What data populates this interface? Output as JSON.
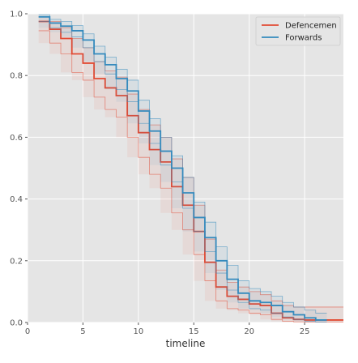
{
  "chart_data": {
    "type": "line",
    "title": "",
    "xlabel": "timeline",
    "ylabel": "",
    "xlim": [
      0,
      28.5
    ],
    "ylim": [
      0,
      1.0
    ],
    "xticks": [
      0,
      5,
      10,
      15,
      20,
      25
    ],
    "yticks": [
      0.0,
      0.2,
      0.4,
      0.6,
      0.8,
      1.0
    ],
    "grid": true,
    "legend": "top-right",
    "background": "#e5e5e5",
    "series": [
      {
        "name": "Defencemen",
        "color": "#e24a33",
        "steps": {
          "x": [
            1,
            2,
            3,
            4,
            5,
            6,
            7,
            8,
            9,
            10,
            11,
            12,
            13,
            14,
            15,
            16,
            17,
            18,
            19,
            20,
            21,
            22,
            23,
            24,
            25,
            26,
            27,
            28.5
          ],
          "y": [
            0.975,
            0.95,
            0.92,
            0.87,
            0.84,
            0.79,
            0.76,
            0.735,
            0.67,
            0.615,
            0.56,
            0.52,
            0.44,
            0.38,
            0.295,
            0.195,
            0.115,
            0.085,
            0.075,
            0.06,
            0.055,
            0.03,
            0.015,
            0.01,
            0.008,
            0.008,
            0.008,
            0.008
          ],
          "ci_upper": [
            0.99,
            0.975,
            0.955,
            0.92,
            0.89,
            0.845,
            0.815,
            0.795,
            0.74,
            0.69,
            0.64,
            0.6,
            0.53,
            0.47,
            0.38,
            0.27,
            0.17,
            0.13,
            0.115,
            0.1,
            0.09,
            0.07,
            0.055,
            0.05,
            0.05,
            0.05,
            0.05,
            0.05
          ],
          "ci_lower": [
            0.945,
            0.905,
            0.87,
            0.81,
            0.785,
            0.73,
            0.69,
            0.665,
            0.6,
            0.535,
            0.48,
            0.435,
            0.355,
            0.3,
            0.22,
            0.135,
            0.07,
            0.045,
            0.04,
            0.03,
            0.025,
            0.01,
            0.004,
            0.002,
            0.001,
            0.001,
            0.001,
            0.001
          ]
        }
      },
      {
        "name": "Forwards",
        "color": "#348abd",
        "steps": {
          "x": [
            1,
            2,
            3,
            4,
            5,
            6,
            7,
            8,
            9,
            10,
            11,
            12,
            13,
            14,
            15,
            16,
            17,
            18,
            19,
            20,
            21,
            22,
            23,
            24,
            25,
            26,
            27
          ],
          "y": [
            0.99,
            0.97,
            0.96,
            0.945,
            0.915,
            0.87,
            0.835,
            0.79,
            0.75,
            0.685,
            0.62,
            0.555,
            0.5,
            0.42,
            0.34,
            0.275,
            0.2,
            0.14,
            0.095,
            0.07,
            0.065,
            0.055,
            0.035,
            0.025,
            0.015,
            0.008,
            0.008
          ],
          "ci_upper": [
            0.997,
            0.982,
            0.975,
            0.962,
            0.935,
            0.895,
            0.86,
            0.82,
            0.785,
            0.72,
            0.66,
            0.6,
            0.54,
            0.47,
            0.39,
            0.325,
            0.245,
            0.185,
            0.135,
            0.11,
            0.1,
            0.085,
            0.065,
            0.05,
            0.04,
            0.03,
            0.03
          ],
          "ci_lower": [
            0.975,
            0.955,
            0.94,
            0.925,
            0.89,
            0.845,
            0.805,
            0.755,
            0.715,
            0.645,
            0.58,
            0.51,
            0.455,
            0.37,
            0.295,
            0.23,
            0.16,
            0.105,
            0.065,
            0.045,
            0.04,
            0.03,
            0.018,
            0.01,
            0.004,
            0.001,
            0.001
          ]
        }
      }
    ]
  }
}
